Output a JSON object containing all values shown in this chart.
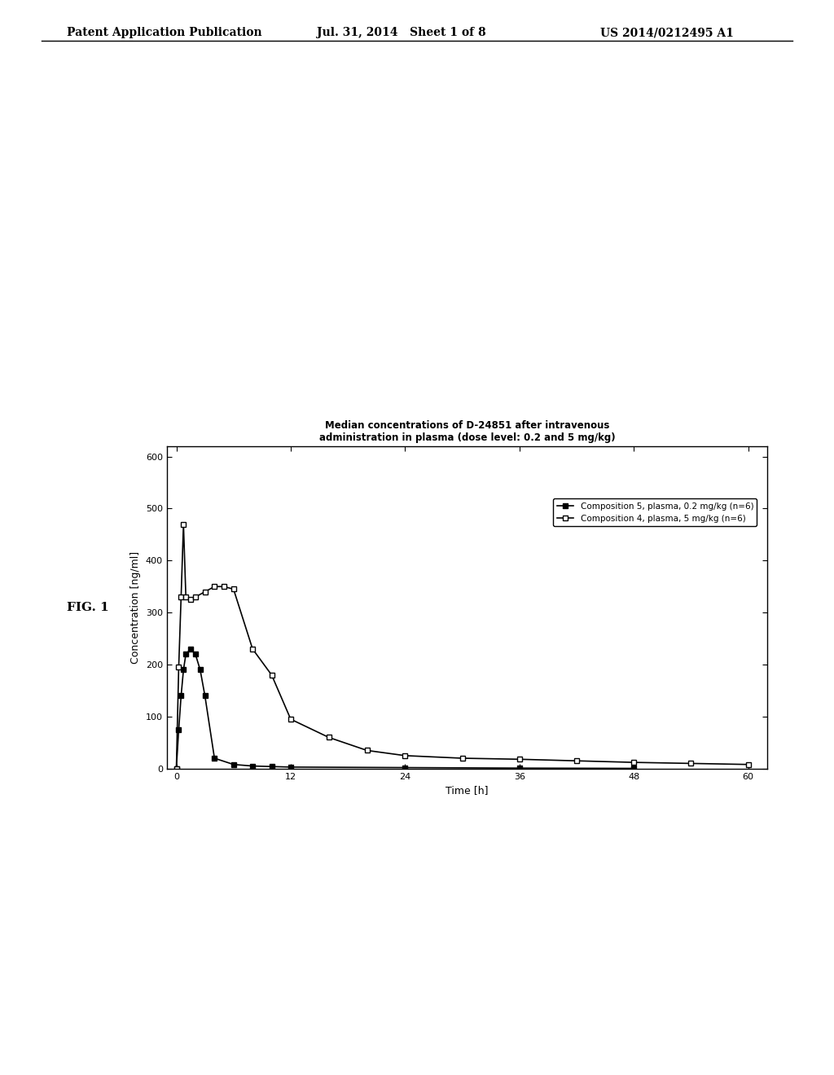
{
  "title_line1": "Median concentrations of D-24851 after intravenous",
  "title_line2": "administration in plasma (dose level: 0.2 and 5 mg/kg)",
  "xlabel": "Time [h]",
  "ylabel": "Concentration [ng/ml]",
  "ylim": [
    0,
    620
  ],
  "xlim": [
    -1,
    62
  ],
  "yticks": [
    0,
    100,
    200,
    300,
    400,
    500,
    600
  ],
  "xticks": [
    0,
    12,
    24,
    36,
    48,
    60
  ],
  "fig_label": "FIG. 1",
  "header_left": "Patent Application Publication",
  "header_center": "Jul. 31, 2014   Sheet 1 of 8",
  "header_right": "US 2014/0212495 A1",
  "legend1": "Composition 5, plasma, 0.2 mg/kg (n=6)",
  "legend2": "Composition 4, plasma, 5 mg/kg (n=6)",
  "comp5_x": [
    0,
    0.25,
    0.5,
    0.75,
    1.0,
    1.5,
    2.0,
    2.5,
    3.0,
    4.0,
    6.0,
    8.0,
    10.0,
    12.0,
    24.0,
    36.0,
    48.0
  ],
  "comp5_y": [
    0,
    75,
    140,
    190,
    220,
    230,
    220,
    190,
    140,
    20,
    8,
    5,
    4,
    3,
    2,
    1,
    0.5
  ],
  "comp4_x": [
    0,
    0.25,
    0.5,
    0.75,
    1.0,
    1.5,
    2.0,
    3.0,
    4.0,
    5.0,
    6.0,
    8.0,
    10.0,
    12.0,
    16.0,
    20.0,
    24.0,
    30.0,
    36.0,
    42.0,
    48.0,
    54.0,
    60.0
  ],
  "comp4_y": [
    0,
    195,
    330,
    470,
    330,
    325,
    330,
    340,
    350,
    350,
    345,
    230,
    180,
    95,
    60,
    35,
    25,
    20,
    18,
    15,
    12,
    10,
    8
  ],
  "background_color": "#ffffff",
  "plot_bg": "#ffffff",
  "line_color": "#000000",
  "border_color": "#000000"
}
